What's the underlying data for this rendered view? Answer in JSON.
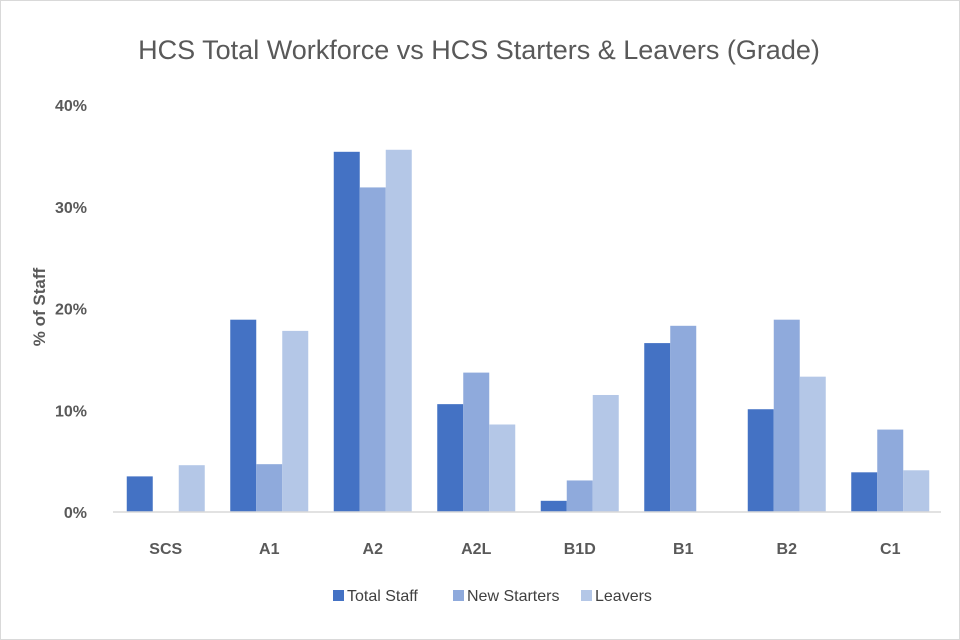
{
  "chart_data": {
    "type": "bar",
    "title": "HCS Total Workforce vs HCS Starters & Leavers (Grade)",
    "xlabel": "",
    "ylabel": "% of Staff",
    "ylim": [
      0,
      40
    ],
    "yticks": [
      "0%",
      "10%",
      "20%",
      "30%",
      "40%"
    ],
    "categories": [
      "SCS",
      "A1",
      "A2",
      "A2L",
      "B1D",
      "B1",
      "B2",
      "C1"
    ],
    "series": [
      {
        "name": "Total Staff",
        "color": "#4472c4",
        "values": [
          3.5,
          18.9,
          35.4,
          10.6,
          1.1,
          16.6,
          10.1,
          3.9
        ]
      },
      {
        "name": "New Starters",
        "color": "#8faadc",
        "values": [
          0,
          4.7,
          31.9,
          13.7,
          3.1,
          18.3,
          18.9,
          8.1
        ]
      },
      {
        "name": "Leavers",
        "color": "#b4c7e7",
        "values": [
          4.6,
          17.8,
          35.6,
          8.6,
          11.5,
          0,
          13.3,
          4.1
        ]
      }
    ],
    "grid": false,
    "legend_position": "bottom"
  }
}
